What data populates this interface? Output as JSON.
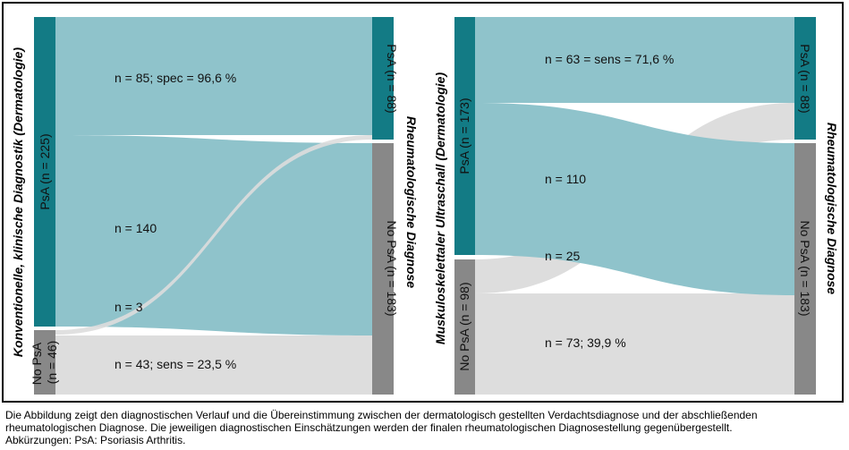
{
  "colors": {
    "psa": "#137b85",
    "no_psa": "#888888",
    "flow_psa": "#8fc3cb",
    "flow_no_psa": "#dddddd"
  },
  "left_panel": {
    "axis_left": "Konventionelle, klinische Diagnostik (Dermatologie)",
    "axis_right": "Rheumatologische Diagnose",
    "source_nodes": [
      {
        "label": "PsA (n = 225)",
        "n": 225,
        "category": "PsA"
      },
      {
        "label_line1": "No PsA",
        "label_line2": "(n = 46)",
        "n": 46,
        "category": "No PsA"
      }
    ],
    "target_nodes": [
      {
        "label": "PsA (n = 88)",
        "n": 88,
        "category": "PsA"
      },
      {
        "label": "No PsA (n = 183)",
        "n": 183,
        "category": "No PsA"
      }
    ],
    "flows": [
      {
        "from": "PsA",
        "to": "PsA",
        "n": 85,
        "label": "n = 85; spec = 96,6 %"
      },
      {
        "from": "PsA",
        "to": "No PsA",
        "n": 140,
        "label": "n = 140"
      },
      {
        "from": "No PsA",
        "to": "PsA",
        "n": 3,
        "label": "n = 3"
      },
      {
        "from": "No PsA",
        "to": "No PsA",
        "n": 43,
        "label": "n = 43; sens = 23,5 %"
      }
    ]
  },
  "right_panel": {
    "axis_left": "Muskuloskelettaler Ultraschall (Dermatologie)",
    "axis_right": "Rheumatologische Diagnose",
    "source_nodes": [
      {
        "label": "PsA (n = 173)",
        "n": 173,
        "category": "PsA"
      },
      {
        "label": "No PsA (n = 98)",
        "n": 98,
        "category": "No PsA"
      }
    ],
    "target_nodes": [
      {
        "label": "PsA (n = 88)",
        "n": 88,
        "category": "PsA"
      },
      {
        "label": "No PsA (n = 183)",
        "n": 183,
        "category": "No PsA"
      }
    ],
    "flows": [
      {
        "from": "PsA",
        "to": "PsA",
        "n": 63,
        "label": "n = 63 = sens = 71,6 %"
      },
      {
        "from": "PsA",
        "to": "No PsA",
        "n": 110,
        "label": "n = 110"
      },
      {
        "from": "No PsA",
        "to": "PsA",
        "n": 25,
        "label": "n = 25"
      },
      {
        "from": "No PsA",
        "to": "No PsA",
        "n": 73,
        "label": "n = 73; 39,9 %"
      }
    ]
  },
  "caption": {
    "line1": "Die Abbildung zeigt den diagnostischen Verlauf und die Übereinstimmung zwischen der dermatologisch gestellten Verdachtsdiagnose und der abschließenden",
    "line2": "rheumatologischen Diagnose. Die jeweiligen diagnostischen Einschätzungen werden der finalen rheumatologischen Diagnosestellung gegenübergestellt.",
    "line3": "Abkürzungen: PsA: Psoriasis Arthritis."
  }
}
